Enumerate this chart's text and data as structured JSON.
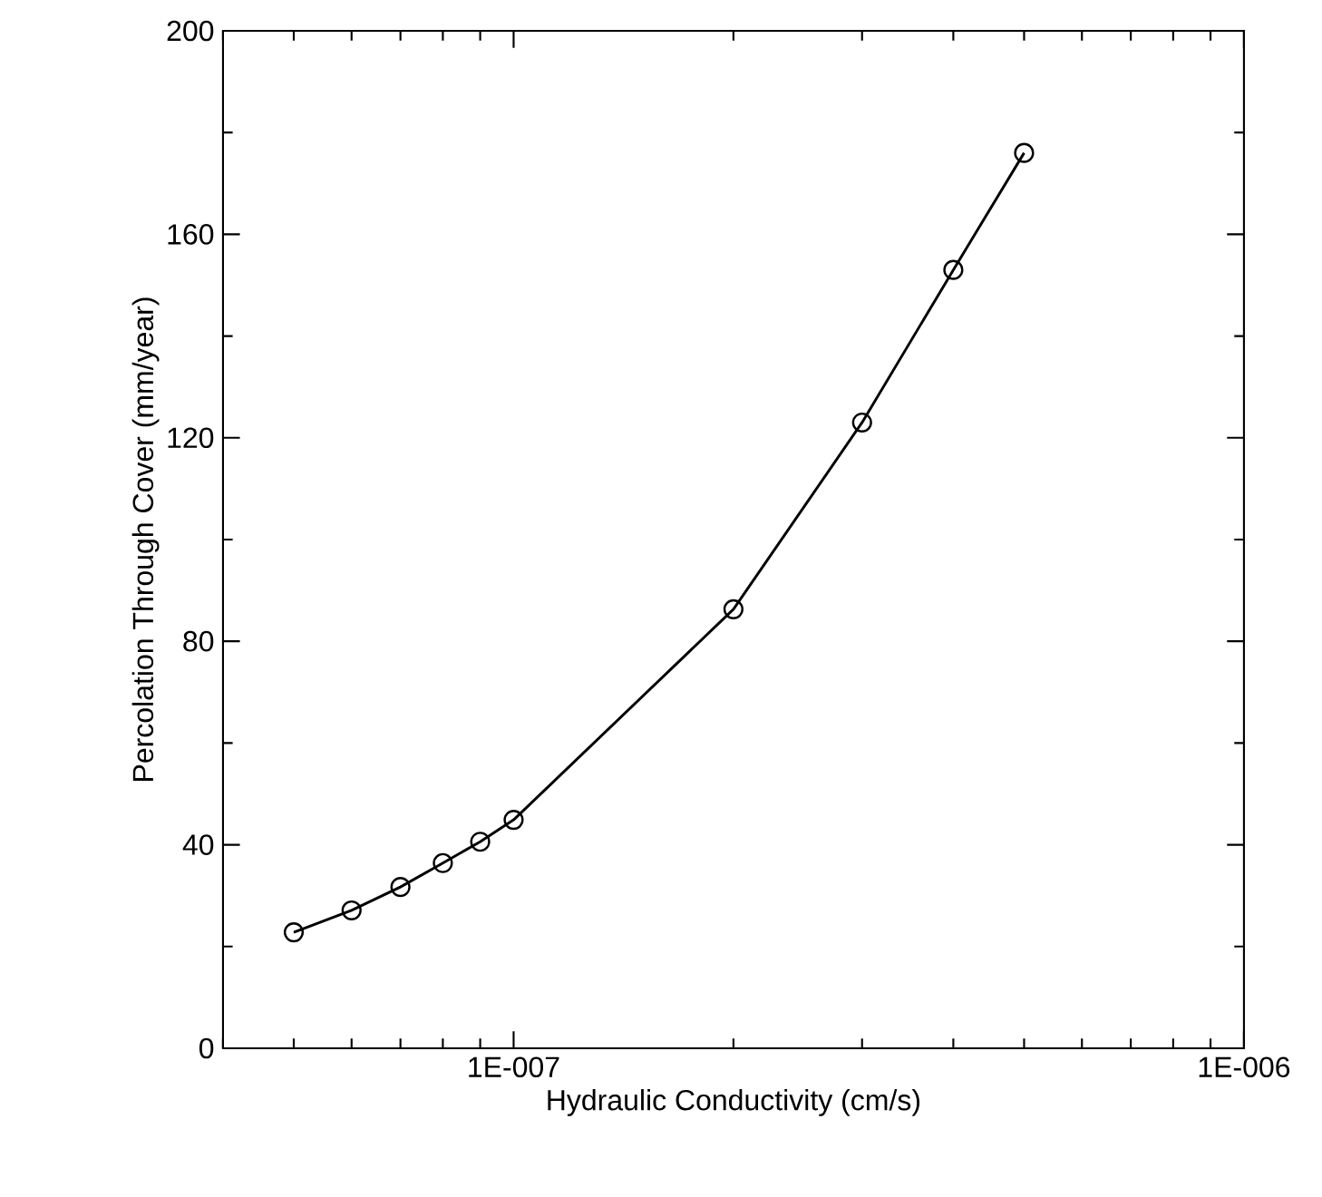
{
  "chart_data": {
    "type": "line",
    "xlabel": "Hydraulic Conductivity (cm/s)",
    "ylabel": "Percolation Through Cover (mm/year)",
    "log": "x",
    "xlim": [
      4e-08,
      1e-06
    ],
    "ylim": [
      0,
      200
    ],
    "xticks": [
      {
        "value": 1e-07,
        "label": "1E-007"
      },
      {
        "value": 1e-06,
        "label": "1E-006"
      }
    ],
    "yticks": [
      0,
      40,
      80,
      120,
      160,
      200
    ],
    "grid": false,
    "marker": "circle",
    "line_style": "solid",
    "x": [
      5e-08,
      6e-08,
      7e-08,
      8e-08,
      9e-08,
      1e-07,
      2e-07,
      3e-07,
      4e-07,
      5e-07
    ],
    "series": [
      {
        "color": "#000000",
        "values": [
          22.8,
          27.1,
          31.7,
          36.4,
          40.6,
          44.9,
          86.3,
          123,
          153,
          176
        ]
      }
    ]
  }
}
